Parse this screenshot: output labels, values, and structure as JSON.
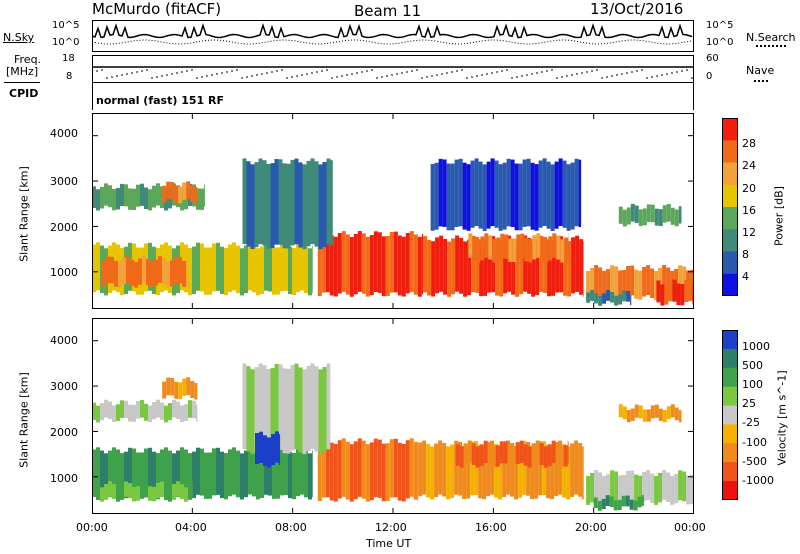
{
  "header": {
    "title": "McMurdo (fitACF)",
    "beam": "Beam 11",
    "date": "13/Oct/2016"
  },
  "strip": {
    "nsky_label": "N.Sky",
    "nsearch_label": "N.Search",
    "freq_label_1": "Freq.",
    "freq_label_2": "[MHz]",
    "nave_label": "Nave",
    "cpid_label": "CPID",
    "cpid_text": "normal (fast) 151 RF",
    "nsky_ticks": [
      "10^5",
      "10^0"
    ],
    "nsearch_ticks": [
      "10^5",
      "10^0"
    ],
    "freq_ticks": [
      "18",
      "8"
    ],
    "nave_ticks": [
      "60",
      "0"
    ]
  },
  "chart_data": [
    {
      "type": "heatmap",
      "title": "",
      "ylabel": "Slant Range [km]",
      "xlabel": "",
      "ylim": [
        180,
        4500
      ],
      "yticks": [
        "1000",
        "2000",
        "3000",
        "4000"
      ],
      "colorbar_label": "Power [dB]",
      "colorbar_ticks": [
        "4",
        "8",
        "12",
        "16",
        "20",
        "24",
        "28"
      ],
      "colors": [
        "#1010e0",
        "#2a5ab0",
        "#3f8a78",
        "#5ca85a",
        "#e6c400",
        "#f3a23a",
        "#f06a1a",
        "#ef1e0e"
      ],
      "bands": [
        {
          "t0": 0.0,
          "t1": 4.5,
          "r0": 2350,
          "r1": 2950,
          "c": 3
        },
        {
          "t0": 2.8,
          "t1": 4.2,
          "r0": 2500,
          "r1": 3000,
          "c": 6
        },
        {
          "t0": 0.0,
          "t1": 8.8,
          "r0": 480,
          "r1": 1650,
          "c": 4
        },
        {
          "t0": 0.4,
          "t1": 3.8,
          "r0": 650,
          "r1": 1350,
          "c": 6
        },
        {
          "t0": 9.0,
          "t1": 13.2,
          "r0": 450,
          "r1": 1900,
          "c": 7
        },
        {
          "t0": 13.2,
          "t1": 19.6,
          "r0": 450,
          "r1": 1800,
          "c": 7
        },
        {
          "t0": 15.0,
          "t1": 19.0,
          "r0": 1200,
          "r1": 1850,
          "c": 6
        },
        {
          "t0": 6.0,
          "t1": 9.6,
          "r0": 1500,
          "r1": 3500,
          "c": 2
        },
        {
          "t0": 19.7,
          "t1": 24.0,
          "r0": 380,
          "r1": 1150,
          "c": 6
        },
        {
          "t0": 19.7,
          "t1": 21.5,
          "r0": 250,
          "r1": 600,
          "c": 2
        },
        {
          "t0": 22.5,
          "t1": 24.0,
          "r0": 250,
          "r1": 850,
          "c": 7
        },
        {
          "t0": 21.0,
          "t1": 23.5,
          "r0": 2000,
          "r1": 2500,
          "c": 3
        },
        {
          "t0": 13.5,
          "t1": 19.5,
          "r0": 1900,
          "r1": 3500,
          "c": 1
        }
      ]
    },
    {
      "type": "heatmap",
      "title": "",
      "ylabel": "Slant Range [km]",
      "xlabel": "Time UT",
      "ylim": [
        180,
        4500
      ],
      "yticks": [
        "1000",
        "2000",
        "3000",
        "4000"
      ],
      "xticks": [
        "00:00",
        "04:00",
        "08:00",
        "12:00",
        "16:00",
        "20:00",
        "00:00"
      ],
      "xlim_hours": [
        0,
        24
      ],
      "colorbar_label": "Velocity [m s^-1]",
      "colorbar_ticks": [
        "1000",
        "500",
        "100",
        "25",
        "-25",
        "-100",
        "-500",
        "-1000"
      ],
      "colors": [
        "#1a3fc8",
        "#2e7f6a",
        "#3fa24a",
        "#7ac840",
        "#c8c8c8",
        "#f5b000",
        "#f08a1c",
        "#f0541a",
        "#ef1010"
      ],
      "bands": [
        {
          "t0": 0.0,
          "t1": 4.2,
          "r0": 2200,
          "r1": 2700,
          "c": 4
        },
        {
          "t0": 2.8,
          "t1": 4.2,
          "r0": 2700,
          "r1": 3200,
          "c": 6
        },
        {
          "t0": 0.0,
          "t1": 8.8,
          "r0": 500,
          "r1": 1650,
          "c": 2
        },
        {
          "t0": 0.0,
          "t1": 4.0,
          "r0": 450,
          "r1": 900,
          "c": 3
        },
        {
          "t0": 9.0,
          "t1": 13.0,
          "r0": 450,
          "r1": 1850,
          "c": 7
        },
        {
          "t0": 13.0,
          "t1": 19.6,
          "r0": 500,
          "r1": 1800,
          "c": 6
        },
        {
          "t0": 14.5,
          "t1": 19.0,
          "r0": 1200,
          "r1": 1800,
          "c": 7
        },
        {
          "t0": 6.0,
          "t1": 9.5,
          "r0": 1500,
          "r1": 3500,
          "c": 4
        },
        {
          "t0": 19.7,
          "t1": 24.0,
          "r0": 380,
          "r1": 1150,
          "c": 4
        },
        {
          "t0": 20.0,
          "t1": 22.0,
          "r0": 250,
          "r1": 600,
          "c": 2
        },
        {
          "t0": 21.0,
          "t1": 23.5,
          "r0": 2200,
          "r1": 2600,
          "c": 6
        },
        {
          "t0": 6.5,
          "t1": 7.5,
          "r0": 1200,
          "r1": 2000,
          "c": 0
        }
      ]
    }
  ]
}
